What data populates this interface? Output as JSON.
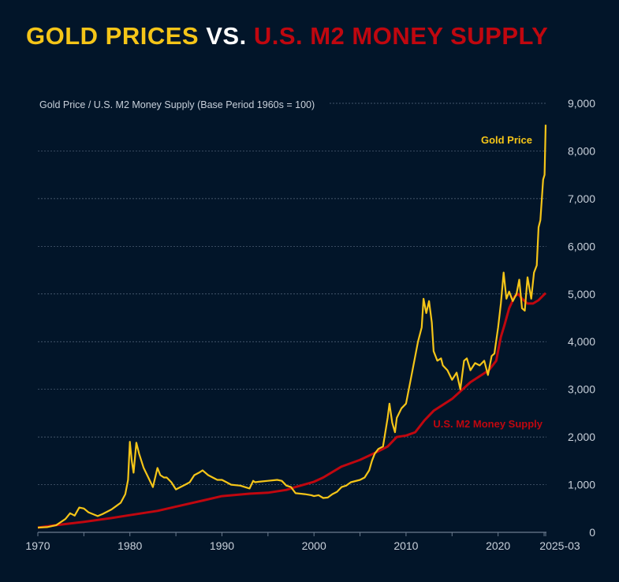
{
  "title": {
    "part1": "GOLD PRICES",
    "part2": "VS.",
    "part3": "U.S. M2 MONEY SUPPLY"
  },
  "colors": {
    "background": "#021529",
    "gold": "#f5c518",
    "m2": "#c0070f",
    "grid": "#5a6b80",
    "text": "#c8d0da"
  },
  "chart_data": {
    "type": "line",
    "title": "GOLD PRICES VS. U.S. M2 MONEY SUPPLY",
    "ylabel": "Gold Price / U.S. M2 Money Supply (Base Period 1960s = 100)",
    "xlim": [
      1970,
      2025.17
    ],
    "ylim": [
      0,
      9000
    ],
    "y_axis_side": "right",
    "grid": true,
    "yticks": [
      "0",
      "1,000",
      "2,000",
      "3,000",
      "4,000",
      "5,000",
      "6,000",
      "7,000",
      "8,000",
      "9,000"
    ],
    "ytick_values": [
      0,
      1000,
      2000,
      3000,
      4000,
      5000,
      6000,
      7000,
      8000,
      9000
    ],
    "xticks": [
      "1970",
      "1980",
      "1990",
      "2000",
      "2010",
      "2020",
      "2025-03"
    ],
    "xtick_values": [
      1970,
      1980,
      1990,
      2000,
      2010,
      2020,
      2025.17
    ],
    "series": [
      {
        "name": "Gold Price",
        "color": "#f5c518",
        "x": [
          1970,
          1971,
          1972,
          1973,
          1973.5,
          1974,
          1974.5,
          1975,
          1975.5,
          1976,
          1976.5,
          1977,
          1978,
          1978.5,
          1979,
          1979.5,
          1979.8,
          1980.0,
          1980.2,
          1980.4,
          1980.7,
          1981,
          1981.5,
          1982,
          1982.5,
          1983,
          1983.3,
          1983.7,
          1984,
          1984.5,
          1985,
          1985.5,
          1986,
          1986.5,
          1987,
          1987.5,
          1987.9,
          1988.5,
          1989,
          1989.5,
          1990,
          1990.5,
          1991,
          1992,
          1993,
          1993.4,
          1993.6,
          1994,
          1995,
          1996,
          1996.5,
          1997,
          1997.5,
          1998,
          1999,
          1999.7,
          2000,
          2000.5,
          2001,
          2001.5,
          2002,
          2002.5,
          2003,
          2003.5,
          2004,
          2005,
          2005.5,
          2006,
          2006.3,
          2006.6,
          2007,
          2007.5,
          2008,
          2008.2,
          2008.5,
          2008.8,
          2009,
          2009.5,
          2010,
          2010.5,
          2011,
          2011.3,
          2011.7,
          2011.9,
          2012.2,
          2012.5,
          2012.8,
          2013,
          2013.4,
          2013.8,
          2014,
          2014.5,
          2015,
          2015.5,
          2015.9,
          2016.3,
          2016.6,
          2017,
          2017.5,
          2018,
          2018.5,
          2018.9,
          2019.3,
          2019.6,
          2020,
          2020.3,
          2020.6,
          2020.9,
          2021.2,
          2021.6,
          2022,
          2022.3,
          2022.6,
          2022.9,
          2023.2,
          2023.6,
          2023.9,
          2024.2,
          2024.4,
          2024.6,
          2024.9,
          2025.05,
          2025.17
        ],
        "values": [
          100,
          110,
          150,
          280,
          400,
          350,
          520,
          500,
          420,
          380,
          340,
          380,
          480,
          550,
          620,
          800,
          1100,
          1900,
          1500,
          1250,
          1880,
          1650,
          1350,
          1150,
          950,
          1350,
          1200,
          1150,
          1150,
          1050,
          900,
          950,
          1000,
          1050,
          1200,
          1250,
          1300,
          1200,
          1150,
          1100,
          1100,
          1050,
          1000,
          980,
          920,
          1080,
          1050,
          1060,
          1080,
          1100,
          1080,
          980,
          950,
          820,
          800,
          780,
          760,
          780,
          720,
          730,
          800,
          850,
          950,
          980,
          1050,
          1100,
          1150,
          1300,
          1500,
          1650,
          1750,
          1800,
          2400,
          2700,
          2300,
          2100,
          2400,
          2600,
          2700,
          3200,
          3700,
          4000,
          4300,
          4900,
          4600,
          4850,
          4400,
          3800,
          3600,
          3650,
          3500,
          3400,
          3200,
          3350,
          3000,
          3600,
          3650,
          3400,
          3550,
          3500,
          3600,
          3300,
          3700,
          3750,
          4300,
          4800,
          5450,
          4900,
          5050,
          4850,
          5000,
          5300,
          4700,
          4650,
          5350,
          4900,
          5450,
          5600,
          6400,
          6550,
          7400,
          7500,
          8550
        ]
      },
      {
        "name": "U.S. M2 Money Supply",
        "color": "#c0070f",
        "x": [
          1970,
          1972,
          1975,
          1978,
          1980,
          1983,
          1985,
          1988,
          1990,
          1993,
          1995,
          1997,
          1998,
          2000,
          2001,
          2003,
          2005,
          2007,
          2008,
          2009,
          2010,
          2011,
          2012,
          2013,
          2015,
          2017,
          2019,
          2019.8,
          2020.1,
          2020.3,
          2020.7,
          2021.2,
          2021.8,
          2022.2,
          2022.6,
          2023.2,
          2023.8,
          2024.4,
          2025.17
        ],
        "values": [
          100,
          150,
          220,
          300,
          360,
          450,
          540,
          670,
          760,
          810,
          830,
          890,
          950,
          1060,
          1150,
          1380,
          1520,
          1700,
          1800,
          2000,
          2030,
          2100,
          2350,
          2550,
          2800,
          3150,
          3400,
          3600,
          3900,
          4100,
          4350,
          4700,
          4950,
          5000,
          4900,
          4800,
          4800,
          4870,
          5020
        ]
      }
    ],
    "annotations": [
      {
        "text": "Gold Price",
        "color": "#f5c518"
      },
      {
        "text": "U.S. M2 Money Supply",
        "color": "#c0070f"
      }
    ]
  }
}
